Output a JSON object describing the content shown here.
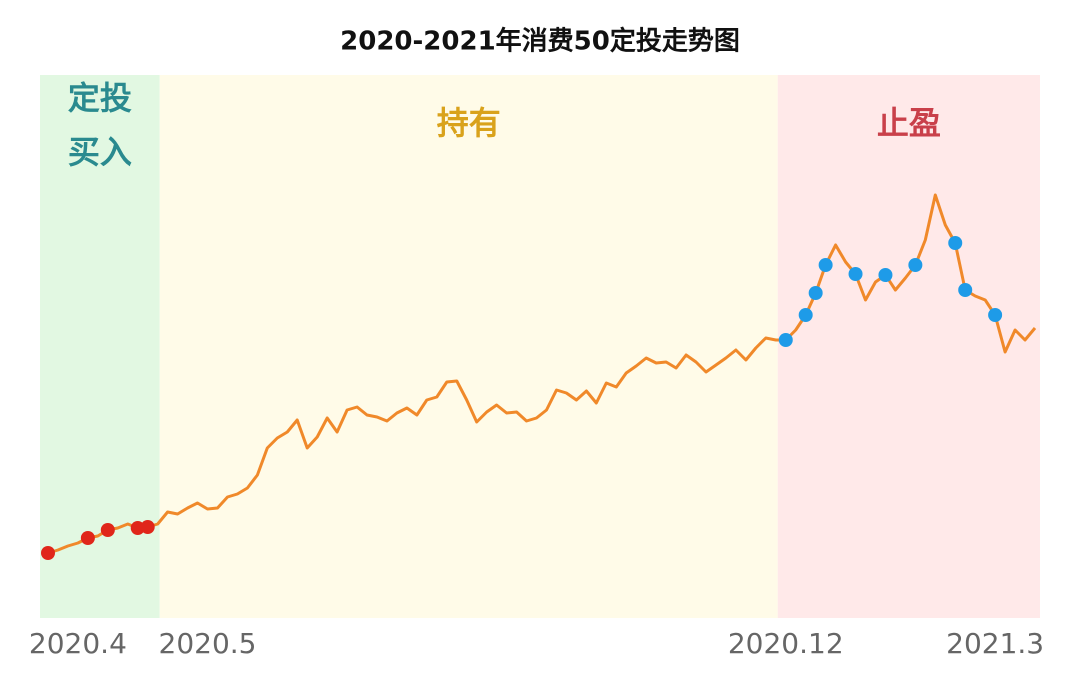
{
  "chart_data": {
    "type": "line",
    "title": "2020-2021年消费50定投走势图",
    "categories": [
      null,
      null,
      null,
      "2020.4",
      null,
      null,
      null,
      null,
      null,
      null,
      null,
      null,
      null,
      null,
      null,
      null,
      "2020.5",
      null,
      null,
      null,
      null,
      null,
      null,
      null,
      null,
      null,
      null,
      null,
      null,
      null,
      null,
      null,
      null,
      null,
      null,
      null,
      null,
      null,
      null,
      null,
      null,
      null,
      null,
      null,
      null,
      null,
      null,
      null,
      null,
      null,
      null,
      null,
      null,
      null,
      null,
      null,
      null,
      null,
      null,
      null,
      null,
      null,
      null,
      null,
      null,
      null,
      null,
      null,
      null,
      null,
      null,
      null,
      null,
      null,
      "2020.12",
      null,
      null,
      null,
      null,
      null,
      null,
      null,
      null,
      null,
      null,
      null,
      null,
      null,
      null,
      null,
      null,
      null,
      null,
      null,
      null,
      "2021.3",
      null,
      null,
      null,
      null
    ],
    "values": [
      67,
      70,
      74,
      77,
      82,
      84,
      90,
      92,
      96,
      92,
      93,
      96,
      108,
      106,
      112,
      117,
      111,
      112,
      123,
      126,
      132,
      145,
      172,
      182,
      188,
      200,
      172,
      183,
      202,
      188,
      210,
      213,
      205,
      203,
      199,
      207,
      212,
      205,
      220,
      223,
      238,
      239,
      220,
      198,
      208,
      215,
      207,
      208,
      199,
      202,
      210,
      230,
      227,
      220,
      229,
      217,
      237,
      233,
      247,
      254,
      262,
      257,
      258,
      252,
      265,
      258,
      248,
      255,
      262,
      270,
      260,
      272,
      282,
      280,
      280,
      290,
      305,
      327,
      355,
      375,
      358,
      346,
      320,
      338,
      345,
      330,
      342,
      355,
      380,
      425,
      395,
      377,
      330,
      324,
      320,
      305,
      268,
      290,
      280,
      292
    ],
    "color": "#f0892a",
    "buy_points": [
      0,
      4,
      6,
      9,
      10
    ],
    "buy_color": "#e0261a",
    "sell_points": [
      74,
      76,
      77,
      78,
      81,
      84,
      87,
      91,
      92,
      95
    ],
    "sell_color": "#1e9be8",
    "phases": [
      {
        "lines": [
          "定投",
          "买入"
        ],
        "color": "#2a8a8f",
        "background": "#e2f8e2"
      },
      {
        "lines": [
          "持有"
        ],
        "color": "#d9a21b",
        "background": "#fffbe8"
      },
      {
        "lines": [
          "止盈"
        ],
        "color": "#c9404a",
        "background": "#ffe9e9"
      }
    ]
  }
}
